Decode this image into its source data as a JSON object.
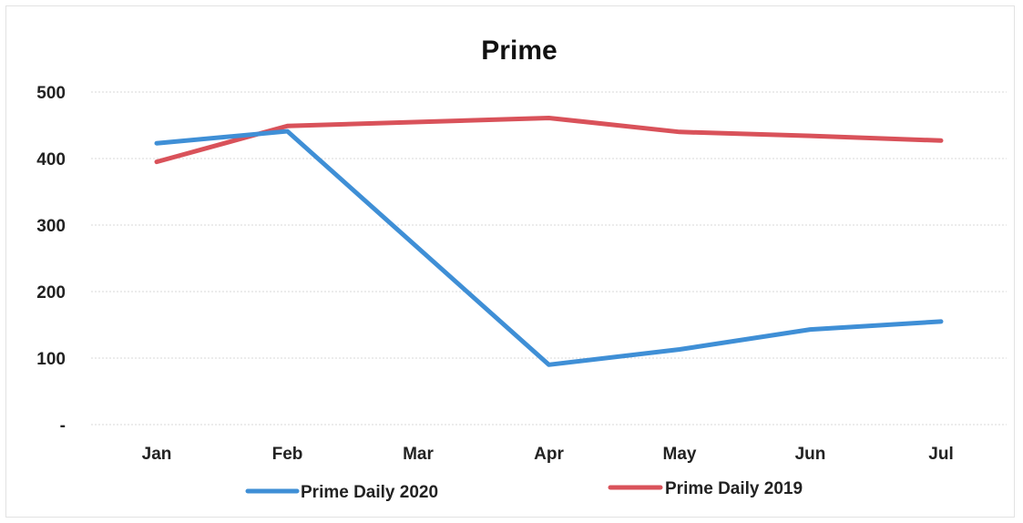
{
  "chart_data": {
    "type": "line",
    "title": "Prime",
    "xlabel": "",
    "ylabel": "",
    "categories": [
      "Jan",
      "Feb",
      "Mar",
      "Apr",
      "May",
      "Jun",
      "Jul"
    ],
    "y_ticks": [
      {
        "value": 0,
        "label": "-"
      },
      {
        "value": 100,
        "label": "100"
      },
      {
        "value": 200,
        "label": "200"
      },
      {
        "value": 300,
        "label": "300"
      },
      {
        "value": 400,
        "label": "400"
      },
      {
        "value": 500,
        "label": "500"
      }
    ],
    "ylim": [
      0,
      500
    ],
    "grid": "horizontal",
    "legend_position": "bottom",
    "series": [
      {
        "name": "Prime Daily 2020",
        "color": "#3f8fd6",
        "values": [
          423,
          441,
          null,
          90,
          113,
          143,
          155
        ]
      },
      {
        "name": "Prime Daily 2019",
        "color": "#d9525a",
        "values": [
          395,
          449,
          455,
          461,
          440,
          434,
          427
        ]
      }
    ]
  }
}
